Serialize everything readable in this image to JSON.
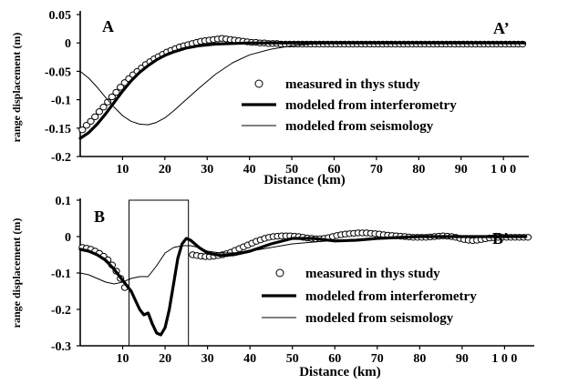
{
  "chart_data": [
    {
      "type": "line",
      "panel_labels": [
        "A",
        "A’"
      ],
      "xlabel": "Distance (km)",
      "ylabel": "range displacement (m)",
      "xlim": [
        0,
        106
      ],
      "ylim": [
        -0.2,
        0.05
      ],
      "xticks": [
        10,
        20,
        30,
        40,
        50,
        60,
        70,
        80,
        90,
        100
      ],
      "xtick_labels": [
        "10",
        "20",
        "30",
        "40",
        "50",
        "60",
        "70",
        "80",
        "90",
        "1 0 0"
      ],
      "yticks": [
        0.05,
        0,
        -0.05,
        -0.1,
        -0.15,
        -0.2
      ],
      "ytick_labels": [
        "0.05",
        "0",
        "-0.05",
        "-0.1",
        "-0.15",
        "-0.2"
      ],
      "legend_position": "center-right",
      "series": [
        {
          "name": "measured in thys study",
          "style": "circles",
          "x": [
            0.5,
            1.5,
            2.5,
            3.5,
            4.5,
            5.5,
            6.5,
            7.5,
            8.5,
            9.5,
            10.5,
            11.5,
            12.5,
            13.5,
            14.5,
            15.5,
            16.5,
            17.5,
            18.5,
            19.5,
            20.5,
            21.5,
            22.5,
            23.5,
            24.5,
            25.5,
            26.5,
            27.5,
            28.5,
            29.5,
            30.5,
            31.5,
            32.5,
            33.5,
            34.5,
            35.5,
            36.5,
            37.5,
            38.5,
            39.5,
            40.5,
            41.5,
            42.5,
            43.5,
            44.5,
            45.5,
            46.5,
            47.5,
            48.5,
            49.5,
            50.5,
            51.5,
            52.5,
            53.5,
            54.5,
            55.5,
            56.5,
            57.5,
            58.5,
            59.5,
            60.5,
            61.5,
            62.5,
            63.5,
            64.5,
            65.5,
            66.5,
            67.5,
            68.5,
            69.5,
            70.5,
            71.5,
            72.5,
            73.5,
            74.5,
            75.5,
            76.5,
            77.5,
            78.5,
            79.5,
            80.5,
            81.5,
            82.5,
            83.5,
            84.5,
            85.5,
            86.5,
            87.5,
            88.5,
            89.5,
            90.5,
            91.5,
            92.5,
            93.5,
            94.5,
            95.5,
            96.5,
            97.5,
            98.5,
            99.5,
            100.5,
            101.5,
            102.5,
            103.5,
            104.5
          ],
          "y": [
            -0.153,
            -0.145,
            -0.138,
            -0.13,
            -0.121,
            -0.113,
            -0.104,
            -0.095,
            -0.087,
            -0.078,
            -0.07,
            -0.063,
            -0.056,
            -0.05,
            -0.044,
            -0.038,
            -0.033,
            -0.028,
            -0.024,
            -0.02,
            -0.016,
            -0.013,
            -0.01,
            -0.007,
            -0.005,
            -0.003,
            -0.001,
            0.001,
            0.003,
            0.004,
            0.005,
            0.006,
            0.007,
            0.008,
            0.007,
            0.006,
            0.005,
            0.004,
            0.003,
            0.002,
            0.001,
            0.001,
            0,
            0,
            -0.001,
            -0.001,
            -0.001,
            -0.002,
            -0.002,
            -0.002,
            -0.002,
            -0.002,
            -0.002,
            -0.002,
            -0.002,
            -0.002,
            -0.002,
            -0.002,
            -0.002,
            -0.002,
            -0.002,
            -0.002,
            -0.002,
            -0.002,
            -0.002,
            -0.002,
            -0.002,
            -0.002,
            -0.002,
            -0.002,
            -0.002,
            -0.002,
            -0.002,
            -0.002,
            -0.002,
            -0.002,
            -0.002,
            -0.002,
            -0.002,
            -0.002,
            -0.002,
            -0.002,
            -0.002,
            -0.002,
            -0.002,
            -0.002,
            -0.002,
            -0.002,
            -0.002,
            -0.002,
            -0.002,
            -0.002,
            -0.002,
            -0.002,
            -0.002,
            -0.002,
            -0.002,
            -0.002,
            -0.002,
            -0.002,
            -0.002,
            -0.002,
            -0.002,
            -0.002,
            -0.002
          ]
        },
        {
          "name": "modeled from interferometry",
          "style": "thick",
          "x": [
            0,
            2,
            4,
            6,
            8,
            10,
            12,
            14,
            16,
            18,
            20,
            22,
            25,
            28,
            32,
            36,
            40,
            50,
            60,
            80,
            105
          ],
          "y": [
            -0.168,
            -0.158,
            -0.143,
            -0.125,
            -0.105,
            -0.085,
            -0.067,
            -0.052,
            -0.04,
            -0.03,
            -0.022,
            -0.016,
            -0.009,
            -0.005,
            -0.002,
            -0.001,
            0,
            0,
            0,
            0,
            0
          ]
        },
        {
          "name": "modeled from seismology",
          "style": "thin",
          "x": [
            0,
            2,
            4,
            6,
            8,
            10,
            12,
            14,
            16,
            18,
            20,
            22,
            25,
            28,
            32,
            36,
            40,
            45,
            50,
            55,
            60,
            70,
            80,
            105
          ],
          "y": [
            -0.05,
            -0.062,
            -0.078,
            -0.096,
            -0.113,
            -0.128,
            -0.138,
            -0.143,
            -0.144,
            -0.14,
            -0.132,
            -0.12,
            -0.1,
            -0.08,
            -0.055,
            -0.035,
            -0.021,
            -0.011,
            -0.005,
            -0.002,
            -0.001,
            0,
            0,
            0
          ]
        }
      ]
    },
    {
      "type": "line",
      "panel_labels": [
        "B",
        "B’"
      ],
      "xlabel": "Distance (km)",
      "ylabel": "range displacement (m)",
      "xlim": [
        0,
        107
      ],
      "ylim": [
        -0.3,
        0.1
      ],
      "xticks": [
        10,
        20,
        30,
        40,
        50,
        60,
        70,
        80,
        90,
        100
      ],
      "xtick_labels": [
        "10",
        "20",
        "30",
        "40",
        "50",
        "60",
        "70",
        "80",
        "90",
        "1 0 0"
      ],
      "yticks": [
        0.1,
        0,
        -0.1,
        -0.2,
        -0.3
      ],
      "ytick_labels": [
        "0.1",
        "0",
        "-0.1",
        "-0.2",
        "-0.3"
      ],
      "box": {
        "x": [
          11.5,
          25.5
        ],
        "y": [
          -0.3,
          0.1
        ]
      },
      "legend_position": "center-right",
      "series": [
        {
          "name": "measured in thys study",
          "style": "circles",
          "x": [
            0.5,
            1.5,
            2.5,
            3.5,
            4.5,
            5.5,
            6.5,
            7.5,
            8.5,
            9.5,
            10.5,
            26.5,
            27.5,
            28.5,
            29.5,
            30.5,
            31.5,
            32.5,
            33.5,
            34.5,
            35.5,
            36.5,
            37.5,
            38.5,
            39.5,
            40.5,
            41.5,
            42.5,
            43.5,
            44.5,
            45.5,
            46.5,
            47.5,
            48.5,
            49.5,
            50.5,
            51.5,
            52.5,
            53.5,
            54.5,
            55.5,
            56.5,
            57.5,
            58.5,
            59.5,
            60.5,
            61.5,
            62.5,
            63.5,
            64.5,
            65.5,
            66.5,
            67.5,
            68.5,
            69.5,
            70.5,
            71.5,
            72.5,
            73.5,
            74.5,
            75.5,
            76.5,
            77.5,
            78.5,
            79.5,
            80.5,
            81.5,
            82.5,
            83.5,
            84.5,
            85.5,
            86.5,
            87.5,
            88.5,
            89.5,
            90.5,
            91.5,
            92.5,
            93.5,
            94.5,
            95.5,
            96.5,
            97.5,
            98.5,
            99.5,
            100.5,
            101.5,
            102.5,
            103.5,
            104.5,
            105.5
          ],
          "y": [
            -0.03,
            -0.032,
            -0.035,
            -0.04,
            -0.046,
            -0.054,
            -0.064,
            -0.078,
            -0.095,
            -0.115,
            -0.14,
            -0.05,
            -0.052,
            -0.054,
            -0.055,
            -0.055,
            -0.054,
            -0.052,
            -0.05,
            -0.047,
            -0.043,
            -0.038,
            -0.033,
            -0.028,
            -0.023,
            -0.018,
            -0.013,
            -0.009,
            -0.005,
            -0.002,
            0,
            0.001,
            0.002,
            0.002,
            0.002,
            0.001,
            0,
            -0.002,
            -0.004,
            -0.005,
            -0.006,
            -0.006,
            -0.005,
            -0.003,
            0,
            0.003,
            0.005,
            0.007,
            0.008,
            0.009,
            0.01,
            0.01,
            0.01,
            0.009,
            0.008,
            0.007,
            0.005,
            0.004,
            0.003,
            0.002,
            0.001,
            0,
            -0.001,
            -0.002,
            -0.002,
            -0.002,
            -0.002,
            -0.001,
            0,
            0.001,
            0.002,
            0.001,
            0,
            -0.002,
            -0.005,
            -0.008,
            -0.01,
            -0.011,
            -0.01,
            -0.008,
            -0.006,
            -0.004,
            -0.003,
            -0.002,
            -0.002,
            -0.002,
            -0.002,
            -0.002,
            -0.002,
            -0.002,
            -0.002
          ]
        },
        {
          "name": "modeled from interferometry",
          "style": "thick",
          "x": [
            0,
            2,
            4,
            6,
            8,
            10,
            12,
            13,
            14,
            15,
            16,
            17,
            18,
            19,
            20,
            21,
            22,
            23,
            24,
            25,
            26,
            27,
            28,
            30,
            33,
            36,
            40,
            45,
            50,
            55,
            60,
            65,
            70,
            80,
            90,
            105
          ],
          "y": [
            -0.035,
            -0.04,
            -0.05,
            -0.065,
            -0.09,
            -0.12,
            -0.15,
            -0.175,
            -0.2,
            -0.215,
            -0.21,
            -0.24,
            -0.265,
            -0.27,
            -0.25,
            -0.2,
            -0.13,
            -0.06,
            -0.02,
            -0.005,
            -0.01,
            -0.02,
            -0.03,
            -0.045,
            -0.052,
            -0.05,
            -0.04,
            -0.02,
            -0.005,
            -0.005,
            -0.012,
            -0.01,
            -0.005,
            0,
            0,
            0
          ]
        },
        {
          "name": "modeled from seismology",
          "style": "thin",
          "x": [
            0,
            2,
            4,
            6,
            8,
            10,
            12,
            14,
            16,
            18,
            20,
            22,
            24,
            26,
            28,
            30,
            33,
            36,
            40,
            45,
            50,
            60,
            70,
            80,
            105
          ],
          "y": [
            -0.1,
            -0.105,
            -0.115,
            -0.125,
            -0.13,
            -0.125,
            -0.115,
            -0.11,
            -0.11,
            -0.08,
            -0.045,
            -0.03,
            -0.025,
            -0.025,
            -0.03,
            -0.04,
            -0.045,
            -0.045,
            -0.04,
            -0.03,
            -0.02,
            -0.01,
            -0.005,
            0,
            0
          ]
        }
      ]
    }
  ]
}
